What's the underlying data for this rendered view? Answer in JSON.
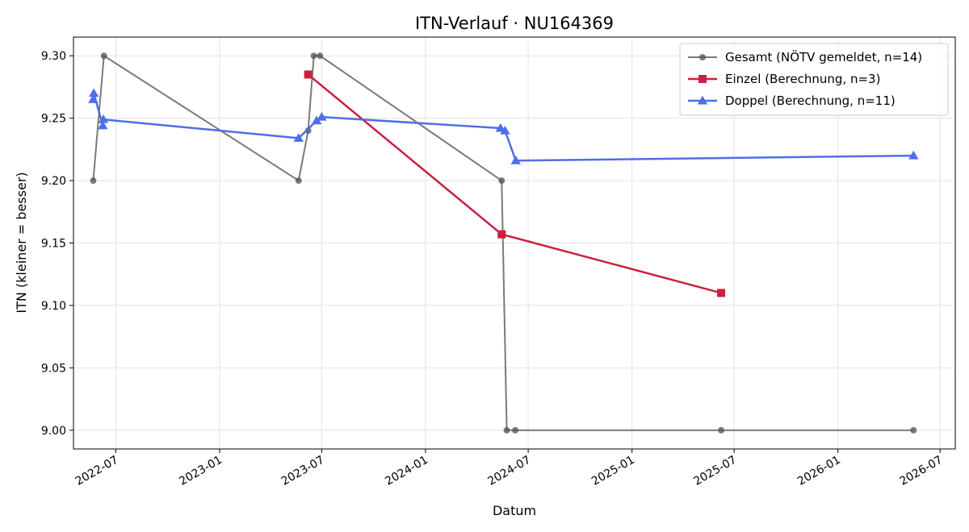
{
  "chart_data": {
    "type": "line",
    "title": "ITN-Verlauf · NU164369",
    "xlabel": "Datum",
    "ylabel": "ITN  (kleiner = besser)",
    "xlim": [
      "2022-04-17",
      "2026-07-28"
    ],
    "ylim": [
      8.985,
      9.315
    ],
    "x_ticks": [
      "2022-07",
      "2023-01",
      "2023-07",
      "2024-01",
      "2024-07",
      "2025-01",
      "2025-07",
      "2026-01",
      "2026-07"
    ],
    "y_ticks": [
      "9.00",
      "9.05",
      "9.10",
      "9.15",
      "9.20",
      "9.25",
      "9.30"
    ],
    "grid": true,
    "legend_position": "top-right",
    "series": [
      {
        "name": "Gesamt (NÖTV gemeldet, n=14)",
        "color": "#555555",
        "marker": "circle",
        "x": [
          "2022-05-22",
          "2022-06-10",
          "2023-05-21",
          "2023-06-07",
          "2023-06-17",
          "2023-06-28",
          "2024-05-15",
          "2024-05-24",
          "2024-06-08",
          "2025-06-08",
          "2026-05-15"
        ],
        "y": [
          9.2,
          9.3,
          9.2,
          9.24,
          9.3,
          9.3,
          9.2,
          9.0,
          9.0,
          9.0,
          9.0
        ]
      },
      {
        "name": "Einzel (Berechnung, n=3)",
        "color": "#c8203e",
        "marker": "square",
        "x": [
          "2023-06-07",
          "2024-05-15",
          "2025-06-08"
        ],
        "y": [
          9.285,
          9.157,
          9.11
        ]
      },
      {
        "name": "Doppel (Berechnung, n=11)",
        "color": "#4f6ee8",
        "marker": "triangle",
        "x": [
          "2022-05-22",
          "2022-05-23",
          "2022-06-08",
          "2022-06-09",
          "2023-05-21",
          "2023-06-22",
          "2023-07-01",
          "2024-05-13",
          "2024-05-21",
          "2024-06-09",
          "2026-05-15"
        ],
        "y": [
          9.265,
          9.27,
          9.244,
          9.249,
          9.234,
          9.248,
          9.251,
          9.242,
          9.24,
          9.216,
          9.22
        ]
      }
    ]
  }
}
